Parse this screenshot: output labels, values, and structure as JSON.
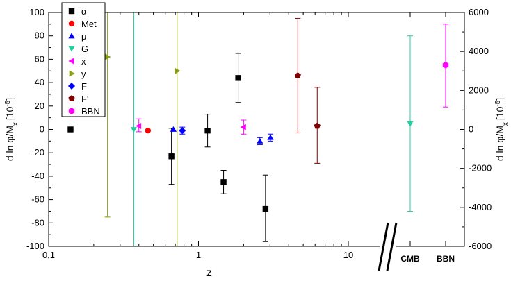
{
  "chart_data": {
    "type": "scatter",
    "xlabel": "z",
    "ylabel_left": "d ln φ/M",
    "ylabel_left_sub": "x",
    "ylabel_left_unit": "[10",
    "ylabel_left_exp": "-5",
    "ylabel_left_close": "]",
    "ylabel_right": "d ln φ/M",
    "ylabel_right_sub": "x",
    "ylabel_right_unit": "[10",
    "ylabel_right_exp": "-5",
    "ylabel_right_close": "]",
    "x_scale": "log",
    "xlim": [
      0.1,
      20
    ],
    "x_ticks": [
      0.1,
      1,
      10
    ],
    "x_tick_labels": [
      "0,1",
      "1",
      "10"
    ],
    "ylim_left": [
      -100,
      100
    ],
    "y_ticks_left": [
      -100,
      -80,
      -60,
      -40,
      -20,
      0,
      20,
      40,
      60,
      80,
      100
    ],
    "ylim_right": [
      -6000,
      6000
    ],
    "y_ticks_right": [
      -6000,
      -4000,
      -2000,
      0,
      2000,
      4000,
      6000
    ],
    "categories_extra": [
      "CMB",
      "BBN"
    ],
    "legend_placement": "top-left",
    "series": [
      {
        "name": "α",
        "color": "#000000",
        "marker": "square",
        "axis": "left",
        "points": [
          {
            "x": 0.14,
            "y": 0,
            "err_low": 0,
            "err_high": 0
          },
          {
            "x": 0.66,
            "y": -23,
            "err_low": 24,
            "err_high": 24
          },
          {
            "x": 1.15,
            "y": -1,
            "err_low": 14,
            "err_high": 14
          },
          {
            "x": 1.47,
            "y": -45,
            "err_low": 10,
            "err_high": 10
          },
          {
            "x": 1.84,
            "y": 44,
            "err_low": 21,
            "err_high": 21
          },
          {
            "x": 2.8,
            "y": -68,
            "err_low": 28,
            "err_high": 29
          }
        ]
      },
      {
        "name": "Met",
        "color": "#ff0000",
        "marker": "circle",
        "axis": "left",
        "points": [
          {
            "x": 0.46,
            "y": -1,
            "err_low": 0,
            "err_high": 0
          }
        ]
      },
      {
        "name": "μ",
        "color": "#0000ff",
        "marker": "triangle-up",
        "axis": "left",
        "points": [
          {
            "x": 0.68,
            "y": 0,
            "err_low": 0,
            "err_high": 0
          },
          {
            "x": 2.57,
            "y": -10,
            "err_low": 3,
            "err_high": 3
          },
          {
            "x": 3.02,
            "y": -7,
            "err_low": 3,
            "err_high": 3
          }
        ]
      },
      {
        "name": "G",
        "color": "#22cfa0",
        "marker": "triangle-down",
        "axis": "right",
        "points": [
          {
            "x": 0.37,
            "y": 0,
            "err_low": 6000,
            "err_high": 6000
          },
          {
            "category": "CMB",
            "y": 300,
            "err_low": 4500,
            "err_high": 4500
          }
        ]
      },
      {
        "name": "x",
        "color": "#ff00ff",
        "marker": "triangle-left",
        "axis": "left",
        "points": [
          {
            "x": 0.4,
            "y": 3,
            "err_low": 5,
            "err_high": 6
          },
          {
            "x": 2.0,
            "y": 2,
            "err_low": 6,
            "err_high": 6
          }
        ]
      },
      {
        "name": "y",
        "color": "#8a9c10",
        "marker": "triangle-right",
        "axis": "left",
        "points": [
          {
            "x": 0.247,
            "y": 62,
            "err_low": 137,
            "err_high": 38
          },
          {
            "x": 0.72,
            "y": 50,
            "err_low": 150,
            "err_high": 50
          }
        ]
      },
      {
        "name": "F",
        "color": "#0000ff",
        "marker": "diamond",
        "axis": "left",
        "points": [
          {
            "x": 0.78,
            "y": -1,
            "err_low": 3,
            "err_high": 3
          }
        ]
      },
      {
        "name": "F'",
        "color": "#800000",
        "marker": "pentagon",
        "axis": "left",
        "points": [
          {
            "x": 4.6,
            "y": 46,
            "err_low": 49,
            "err_high": 49
          },
          {
            "x": 6.2,
            "y": 3,
            "err_low": 32,
            "err_high": 33
          }
        ]
      },
      {
        "name": "BBN",
        "color": "#ff00ff",
        "marker": "hexagon",
        "axis": "right",
        "points": [
          {
            "category": "BBN",
            "y": 3300,
            "err_low": 2150,
            "err_high": 2100
          }
        ]
      }
    ]
  }
}
